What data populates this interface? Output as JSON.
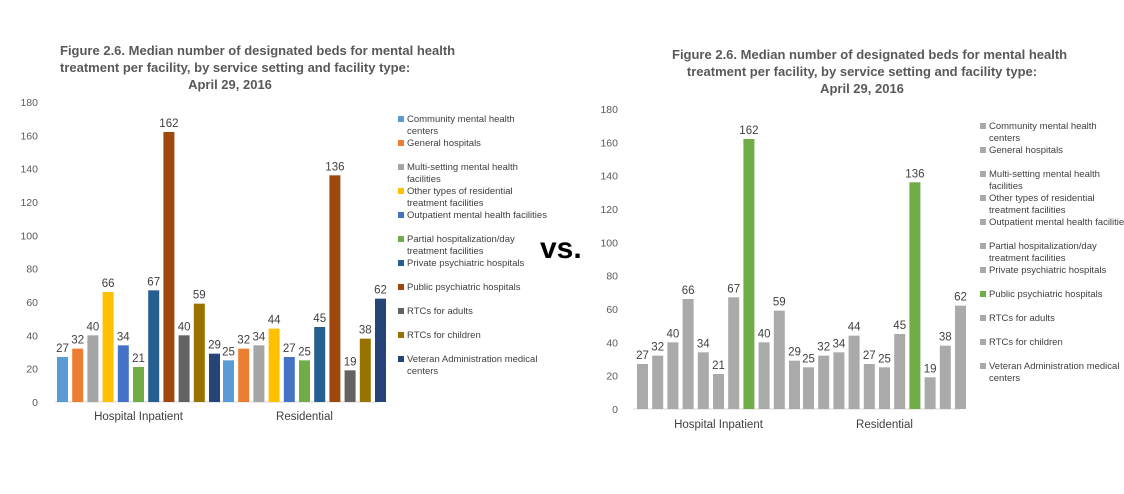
{
  "separator": "vs.",
  "charts": [
    {
      "title_lines": [
        "Figure 2.6. Median number of designated beds for mental health",
        "treatment per facility, by service setting and facility type:",
        "April 29, 2016"
      ],
      "legend_items": [
        "Community mental health centers",
        "General hospitals",
        "Multi-setting mental health facilities",
        "Other types of residential treatment facilities",
        "Outpatient mental health facilities",
        "Partial hospitalization/day treatment facilities",
        "Private psychiatric hospitals",
        "Public psychiatric hospitals",
        "RTCs for adults",
        "RTCs for children",
        "Veteran Administration medical centers"
      ]
    },
    {
      "title_lines": [
        "Figure 2.6. Median number of designated beds for mental health",
        "treatment per facility, by service setting and facility type:",
        "April 29, 2016"
      ],
      "legend_items": [
        "Community mental health centers",
        "General hospitals",
        "Multi-setting mental health facilities",
        "Other types of residential treatment facilities",
        "Outpatient mental health facilities",
        "Partial hospitalization/day treatment facilities",
        "Private psychiatric hospitals",
        "Public psychiatric hospitals",
        "RTCs for adults",
        "RTCs for children",
        "Veteran Administration medical centers"
      ]
    }
  ],
  "chart_data": [
    {
      "type": "bar",
      "title": "Figure 2.6. Median number of designated beds for mental health treatment per facility, by service setting and facility type: April 29, 2016",
      "categories": [
        "Hospital Inpatient",
        "Residential"
      ],
      "ylim": [
        0,
        180
      ],
      "yticks": [
        0,
        20,
        40,
        60,
        80,
        100,
        120,
        140,
        160,
        180
      ],
      "xlabel": "",
      "ylabel": "",
      "legend_position": "right",
      "series": [
        {
          "name": "Community mental health centers",
          "values": [
            27,
            25
          ],
          "color": "#5b9bd5"
        },
        {
          "name": "General hospitals",
          "values": [
            32,
            32
          ],
          "color": "#ed7d31"
        },
        {
          "name": "Multi-setting mental health facilities",
          "values": [
            40,
            34
          ],
          "color": "#a5a5a5"
        },
        {
          "name": "Other types of residential treatment facilities",
          "values": [
            66,
            44
          ],
          "color": "#ffc000"
        },
        {
          "name": "Outpatient mental health facilities",
          "values": [
            34,
            27
          ],
          "color": "#4472c4"
        },
        {
          "name": "Partial hospitalization/day treatment facilities",
          "values": [
            21,
            25
          ],
          "color": "#70ad47"
        },
        {
          "name": "Private psychiatric hospitals",
          "values": [
            67,
            45
          ],
          "color": "#255e91"
        },
        {
          "name": "Public psychiatric hospitals",
          "values": [
            162,
            136
          ],
          "color": "#9e480e"
        },
        {
          "name": "RTCs for adults",
          "values": [
            40,
            19
          ],
          "color": "#636363"
        },
        {
          "name": "RTCs for children",
          "values": [
            59,
            38
          ],
          "color": "#997300"
        },
        {
          "name": "Veteran Administration medical centers",
          "values": [
            29,
            62
          ],
          "color": "#264478"
        }
      ]
    },
    {
      "type": "bar",
      "title": "Figure 2.6. Median number of designated beds for mental health treatment per facility, by service setting and facility type: April 29, 2016",
      "categories": [
        "Hospital Inpatient",
        "Residential"
      ],
      "ylim": [
        0,
        180
      ],
      "yticks": [
        0,
        20,
        40,
        60,
        80,
        100,
        120,
        140,
        160,
        180
      ],
      "xlabel": "",
      "ylabel": "",
      "legend_position": "right",
      "series": [
        {
          "name": "Community mental health centers",
          "values": [
            27,
            25
          ],
          "color": "#aaaaaa"
        },
        {
          "name": "General hospitals",
          "values": [
            32,
            32
          ],
          "color": "#aaaaaa"
        },
        {
          "name": "Multi-setting mental health facilities",
          "values": [
            40,
            34
          ],
          "color": "#aaaaaa"
        },
        {
          "name": "Other types of residential treatment facilities",
          "values": [
            66,
            44
          ],
          "color": "#aaaaaa"
        },
        {
          "name": "Outpatient mental health facilities",
          "values": [
            34,
            27
          ],
          "color": "#aaaaaa"
        },
        {
          "name": "Partial hospitalization/day treatment facilities",
          "values": [
            21,
            25
          ],
          "color": "#aaaaaa"
        },
        {
          "name": "Private psychiatric hospitals",
          "values": [
            67,
            45
          ],
          "color": "#aaaaaa"
        },
        {
          "name": "Public psychiatric hospitals",
          "values": [
            162,
            136
          ],
          "color": "#70ad47"
        },
        {
          "name": "RTCs for adults",
          "values": [
            40,
            19
          ],
          "color": "#aaaaaa"
        },
        {
          "name": "RTCs for children",
          "values": [
            59,
            38
          ],
          "color": "#aaaaaa"
        },
        {
          "name": "Veteran Administration medical centers",
          "values": [
            29,
            62
          ],
          "color": "#aaaaaa"
        }
      ]
    }
  ]
}
